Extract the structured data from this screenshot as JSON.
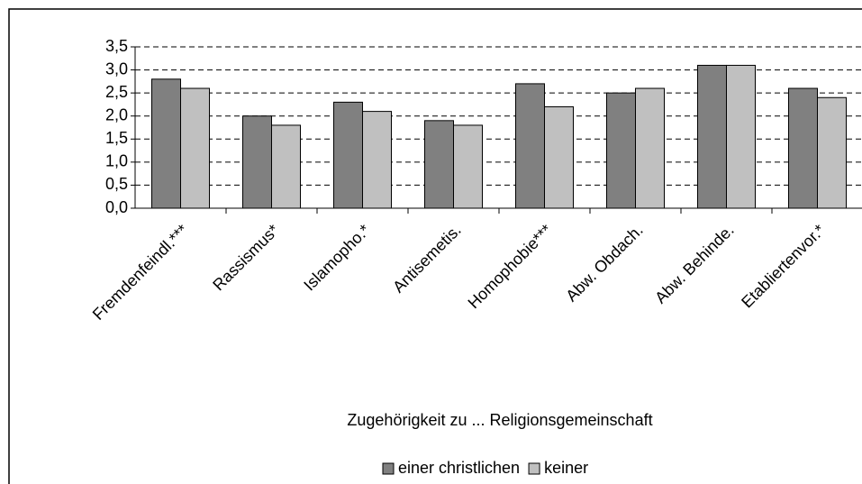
{
  "chart_data": {
    "type": "bar",
    "x_label": "Zugehörigkeit zu ... Religionsgemeinschaft",
    "categories": [
      "Fremdenfeindl.***",
      "Rassismus*",
      "Islamopho.*",
      "Antisemetis.",
      "Homophobie***",
      "Abw. Obdach.",
      "Abw. Behinde.",
      "Etabliertenvor.*"
    ],
    "series": [
      {
        "name": "einer christlichen",
        "color": "#808080",
        "values": [
          2.8,
          2.0,
          2.3,
          1.9,
          2.7,
          2.5,
          3.1,
          2.6
        ]
      },
      {
        "name": "keiner",
        "color": "#c0c0c0",
        "values": [
          2.6,
          1.8,
          2.1,
          1.8,
          2.2,
          2.6,
          3.1,
          2.4
        ]
      }
    ],
    "ylim": [
      0,
      3.5
    ],
    "yticks": [
      {
        "value": 0,
        "label": "0,0"
      },
      {
        "value": 0.5,
        "label": "0,5"
      },
      {
        "value": 1,
        "label": "1,0"
      },
      {
        "value": 1.5,
        "label": "1,5"
      },
      {
        "value": 2,
        "label": "2,0"
      },
      {
        "value": 2.5,
        "label": "2,5"
      },
      {
        "value": 3,
        "label": "3,0"
      },
      {
        "value": 3.5,
        "label": "3,5"
      }
    ],
    "grid": true,
    "legend": "bottom"
  }
}
